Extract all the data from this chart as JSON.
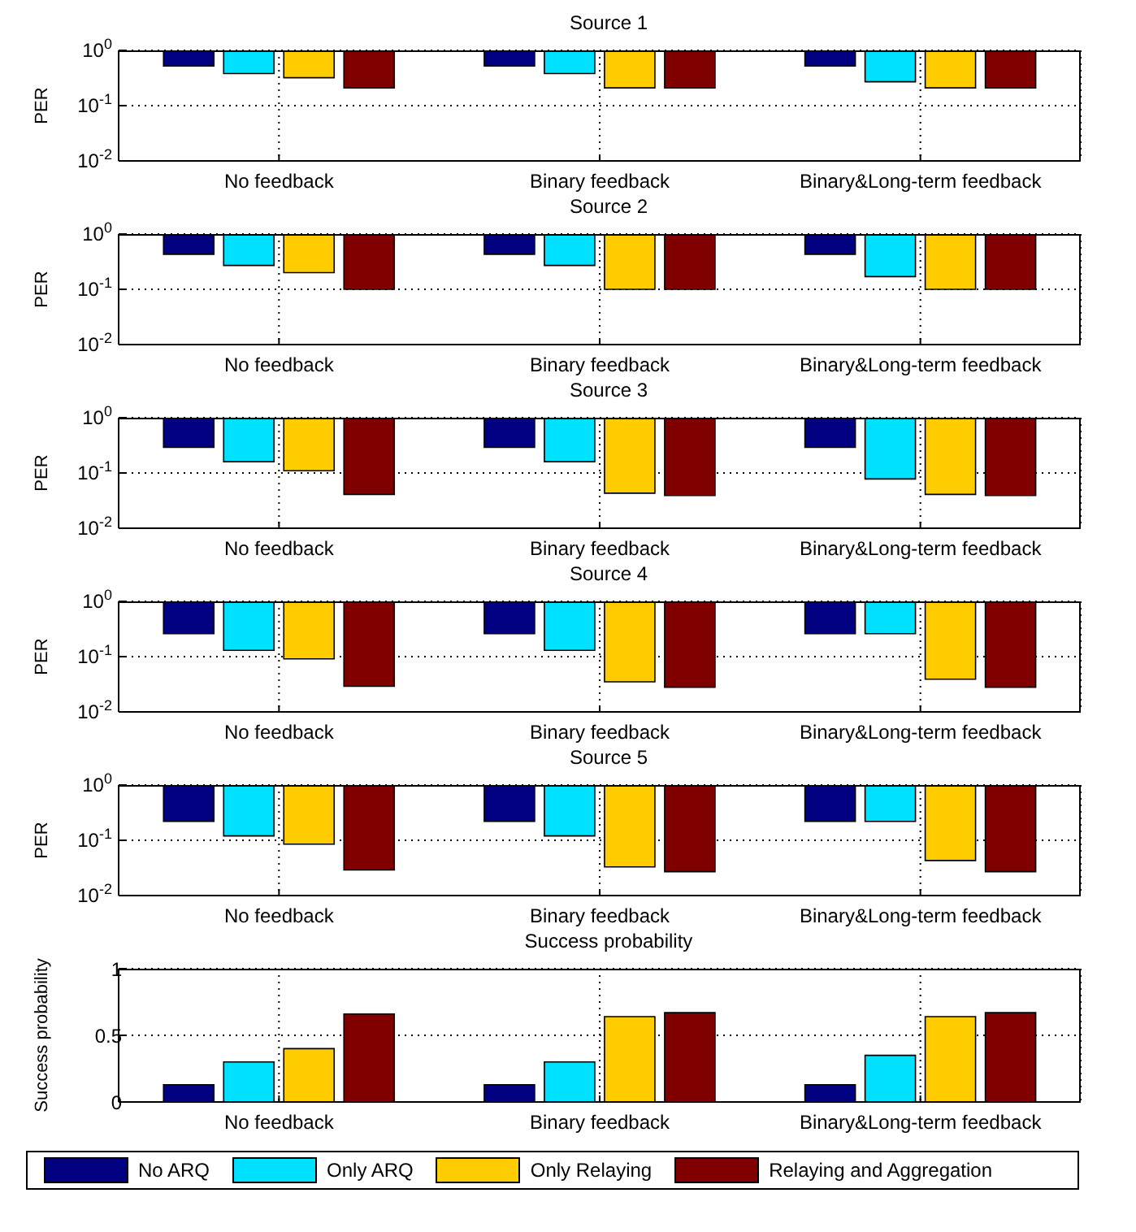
{
  "chart_data": [
    {
      "type": "bar",
      "title": "Source 1",
      "ylabel": "PER",
      "categories": [
        "No feedback",
        "Binary feedback",
        "Binary&Long-term feedback"
      ],
      "log": "y",
      "ylim": [
        0.01,
        1
      ],
      "yticks": [
        {
          "value": 0.01,
          "label": "10$^{-2}$"
        },
        {
          "value": 0.1,
          "label": "10$^{-1}$"
        },
        {
          "value": 1,
          "label": "10$^{0}$"
        }
      ],
      "grid": true,
      "legend": false,
      "series": [
        {
          "color": "#000080",
          "base": [
            1,
            1,
            1
          ],
          "values": [
            -0.48,
            -0.48,
            -0.48
          ]
        },
        {
          "color": "#00e0ff",
          "base": [
            1,
            1,
            1
          ],
          "values": [
            -0.62,
            -0.62,
            -0.73
          ]
        },
        {
          "color": "#ffcc00",
          "base": [
            1,
            1,
            1
          ],
          "values": [
            -0.68,
            -0.79,
            -0.79
          ]
        },
        {
          "color": "#800000",
          "base": [
            1,
            1,
            1
          ],
          "values": [
            -0.79,
            -0.79,
            -0.79
          ]
        }
      ]
    },
    {
      "type": "bar",
      "title": "Source 2",
      "ylabel": "PER",
      "categories": [
        "No feedback",
        "Binary feedback",
        "Binary&Long-term feedback"
      ],
      "log": "y",
      "ylim": [
        0.01,
        1
      ],
      "yticks": [
        {
          "value": 0.01,
          "label": "10$^{-2}$"
        },
        {
          "value": 0.1,
          "label": "10$^{-1}$"
        },
        {
          "value": 1,
          "label": "10$^{0}$"
        }
      ],
      "grid": true,
      "legend": false,
      "series": [
        {
          "color": "#000080",
          "base": [
            1,
            1,
            1
          ],
          "values": [
            -0.57,
            -0.57,
            -0.57
          ]
        },
        {
          "color": "#00e0ff",
          "base": [
            1,
            1,
            1
          ],
          "values": [
            -0.73,
            -0.73,
            -0.83
          ]
        },
        {
          "color": "#ffcc00",
          "base": [
            1,
            1,
            1
          ],
          "values": [
            -0.8,
            -0.9,
            -0.9
          ]
        },
        {
          "color": "#800000",
          "base": [
            1,
            1,
            1
          ],
          "values": [
            -0.9,
            -0.9,
            -0.9
          ]
        }
      ]
    },
    {
      "type": "bar",
      "title": "Source 3",
      "ylabel": "PER",
      "categories": [
        "No feedback",
        "Binary feedback",
        "Binary&Long-term feedback"
      ],
      "log": "y",
      "ylim": [
        0.01,
        1
      ],
      "yticks": [
        {
          "value": 0.01,
          "label": "10$^{-2}$"
        },
        {
          "value": 0.1,
          "label": "10$^{-1}$"
        },
        {
          "value": 1,
          "label": "10$^{0}$"
        }
      ],
      "grid": true,
      "legend": false,
      "series": [
        {
          "color": "#000080",
          "base": [
            1,
            1,
            1
          ],
          "values": [
            -0.71,
            -0.71,
            -0.71
          ]
        },
        {
          "color": "#00e0ff",
          "base": [
            1,
            1,
            1
          ],
          "values": [
            -0.84,
            -0.84,
            -0.922
          ]
        },
        {
          "color": "#ffcc00",
          "base": [
            1,
            1,
            1
          ],
          "values": [
            -0.89,
            -0.957,
            -0.959
          ]
        },
        {
          "color": "#800000",
          "base": [
            1,
            1,
            1
          ],
          "values": [
            -0.959,
            -0.961,
            -0.961
          ]
        }
      ]
    },
    {
      "type": "bar",
      "title": "Source 4",
      "ylabel": "PER",
      "categories": [
        "No feedback",
        "Binary feedback",
        "Binary&Long-term feedback"
      ],
      "log": "y",
      "ylim": [
        0.01,
        1
      ],
      "yticks": [
        {
          "value": 0.01,
          "label": "10$^{-2}$"
        },
        {
          "value": 0.1,
          "label": "10$^{-1}$"
        },
        {
          "value": 1,
          "label": "10$^{0}$"
        }
      ],
      "grid": true,
      "legend": false,
      "series": [
        {
          "color": "#000080",
          "base": [
            1,
            1,
            1
          ],
          "values": [
            -0.74,
            -0.74,
            -0.74
          ]
        },
        {
          "color": "#00e0ff",
          "base": [
            1,
            1,
            1
          ],
          "values": [
            -0.87,
            -0.87,
            -0.74
          ]
        },
        {
          "color": "#ffcc00",
          "base": [
            1,
            1,
            1
          ],
          "values": [
            -0.909,
            -0.965,
            -0.961
          ]
        },
        {
          "color": "#800000",
          "base": [
            1,
            1,
            1
          ],
          "values": [
            -0.971,
            -0.972,
            -0.972
          ]
        }
      ]
    },
    {
      "type": "bar",
      "title": "Source 5",
      "ylabel": "PER",
      "categories": [
        "No feedback",
        "Binary feedback",
        "Binary&Long-term feedback"
      ],
      "log": "y",
      "ylim": [
        0.01,
        1
      ],
      "yticks": [
        {
          "value": 0.01,
          "label": "10$^{-2}$"
        },
        {
          "value": 0.1,
          "label": "10$^{-1}$"
        },
        {
          "value": 1,
          "label": "10$^{0}$"
        }
      ],
      "grid": true,
      "legend": false,
      "series": [
        {
          "color": "#000080",
          "base": [
            1,
            1,
            1
          ],
          "values": [
            -0.78,
            -0.78,
            -0.78
          ]
        },
        {
          "color": "#00e0ff",
          "base": [
            1,
            1,
            1
          ],
          "values": [
            -0.88,
            -0.88,
            -0.78
          ]
        },
        {
          "color": "#ffcc00",
          "base": [
            1,
            1,
            1
          ],
          "values": [
            -0.915,
            -0.967,
            -0.957
          ]
        },
        {
          "color": "#800000",
          "base": [
            1,
            1,
            1
          ],
          "values": [
            -0.971,
            -0.973,
            -0.973
          ]
        }
      ]
    },
    {
      "type": "bar",
      "title": "Success probability",
      "ylabel": "Success probability",
      "categories": [
        "No feedback",
        "Binary feedback",
        "Binary&Long-term feedback"
      ],
      "ylim": [
        0,
        1
      ],
      "yticks": [
        0,
        0.5,
        1
      ],
      "grid": true,
      "legend": "bottom",
      "series": [
        {
          "name": "No ARQ",
          "color": "#000080",
          "values": [
            0.13,
            0.13,
            0.13
          ]
        },
        {
          "name": "Only ARQ",
          "color": "#00e0ff",
          "values": [
            0.3,
            0.3,
            0.35
          ]
        },
        {
          "name": "Only Relaying",
          "color": "#ffcc00",
          "values": [
            0.4,
            0.64,
            0.64
          ]
        },
        {
          "name": "Relaying and Aggregation",
          "color": "#800000",
          "values": [
            0.66,
            0.67,
            0.67
          ]
        }
      ]
    }
  ]
}
